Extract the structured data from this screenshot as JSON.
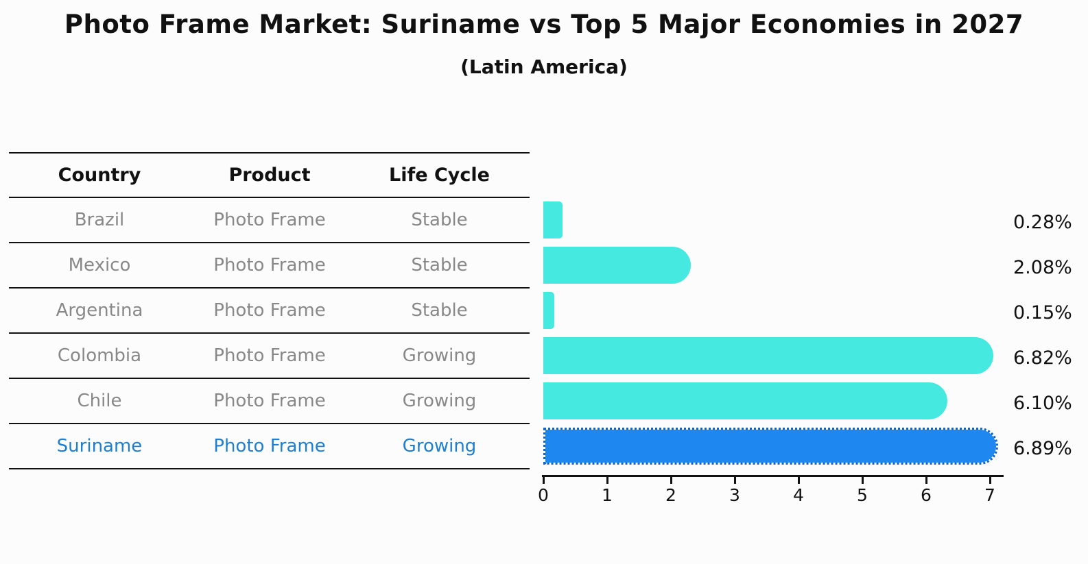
{
  "title": "Photo Frame Market: Suriname vs Top 5 Major Economies in 2027",
  "subtitle": "(Latin America)",
  "colors": {
    "bar_default": "#45e9e0",
    "bar_highlight": "#1e87f0",
    "bar_highlight_border": "#0e66cc",
    "table_text": "#888888",
    "highlight_text": "#1e7fd0",
    "axis_text": "#111111"
  },
  "table": {
    "headers": [
      "Country",
      "Product",
      "Life Cycle"
    ],
    "rows": [
      {
        "country": "Brazil",
        "product": "Photo Frame",
        "life_cycle": "Stable",
        "highlighted": false
      },
      {
        "country": "Mexico",
        "product": "Photo Frame",
        "life_cycle": "Stable",
        "highlighted": false
      },
      {
        "country": "Argentina",
        "product": "Photo Frame",
        "life_cycle": "Stable",
        "highlighted": false
      },
      {
        "country": "Colombia",
        "product": "Photo Frame",
        "life_cycle": "Growing",
        "highlighted": false
      },
      {
        "country": "Chile",
        "product": "Photo Frame",
        "life_cycle": "Growing",
        "highlighted": false
      },
      {
        "country": "Suriname",
        "product": "Photo Frame",
        "life_cycle": "Growing",
        "highlighted": true
      }
    ]
  },
  "chart_data": {
    "type": "bar",
    "orientation": "horizontal",
    "title": "Photo Frame Market: Suriname vs Top 5 Major Economies in 2027",
    "subtitle": "(Latin America)",
    "categories": [
      "Brazil",
      "Mexico",
      "Argentina",
      "Colombia",
      "Chile",
      "Suriname"
    ],
    "values": [
      0.28,
      2.08,
      0.15,
      6.82,
      6.1,
      6.89
    ],
    "value_labels": [
      "0.28%",
      "2.08%",
      "0.15%",
      "6.82%",
      "6.10%",
      "6.89%"
    ],
    "highlighted_category": "Suriname",
    "xlabel": "",
    "ylabel": "",
    "xlim": [
      0,
      7.2
    ],
    "xticks": [
      "0",
      "1",
      "2",
      "3",
      "4",
      "5",
      "6",
      "7"
    ],
    "grid": false,
    "legend": "none"
  }
}
